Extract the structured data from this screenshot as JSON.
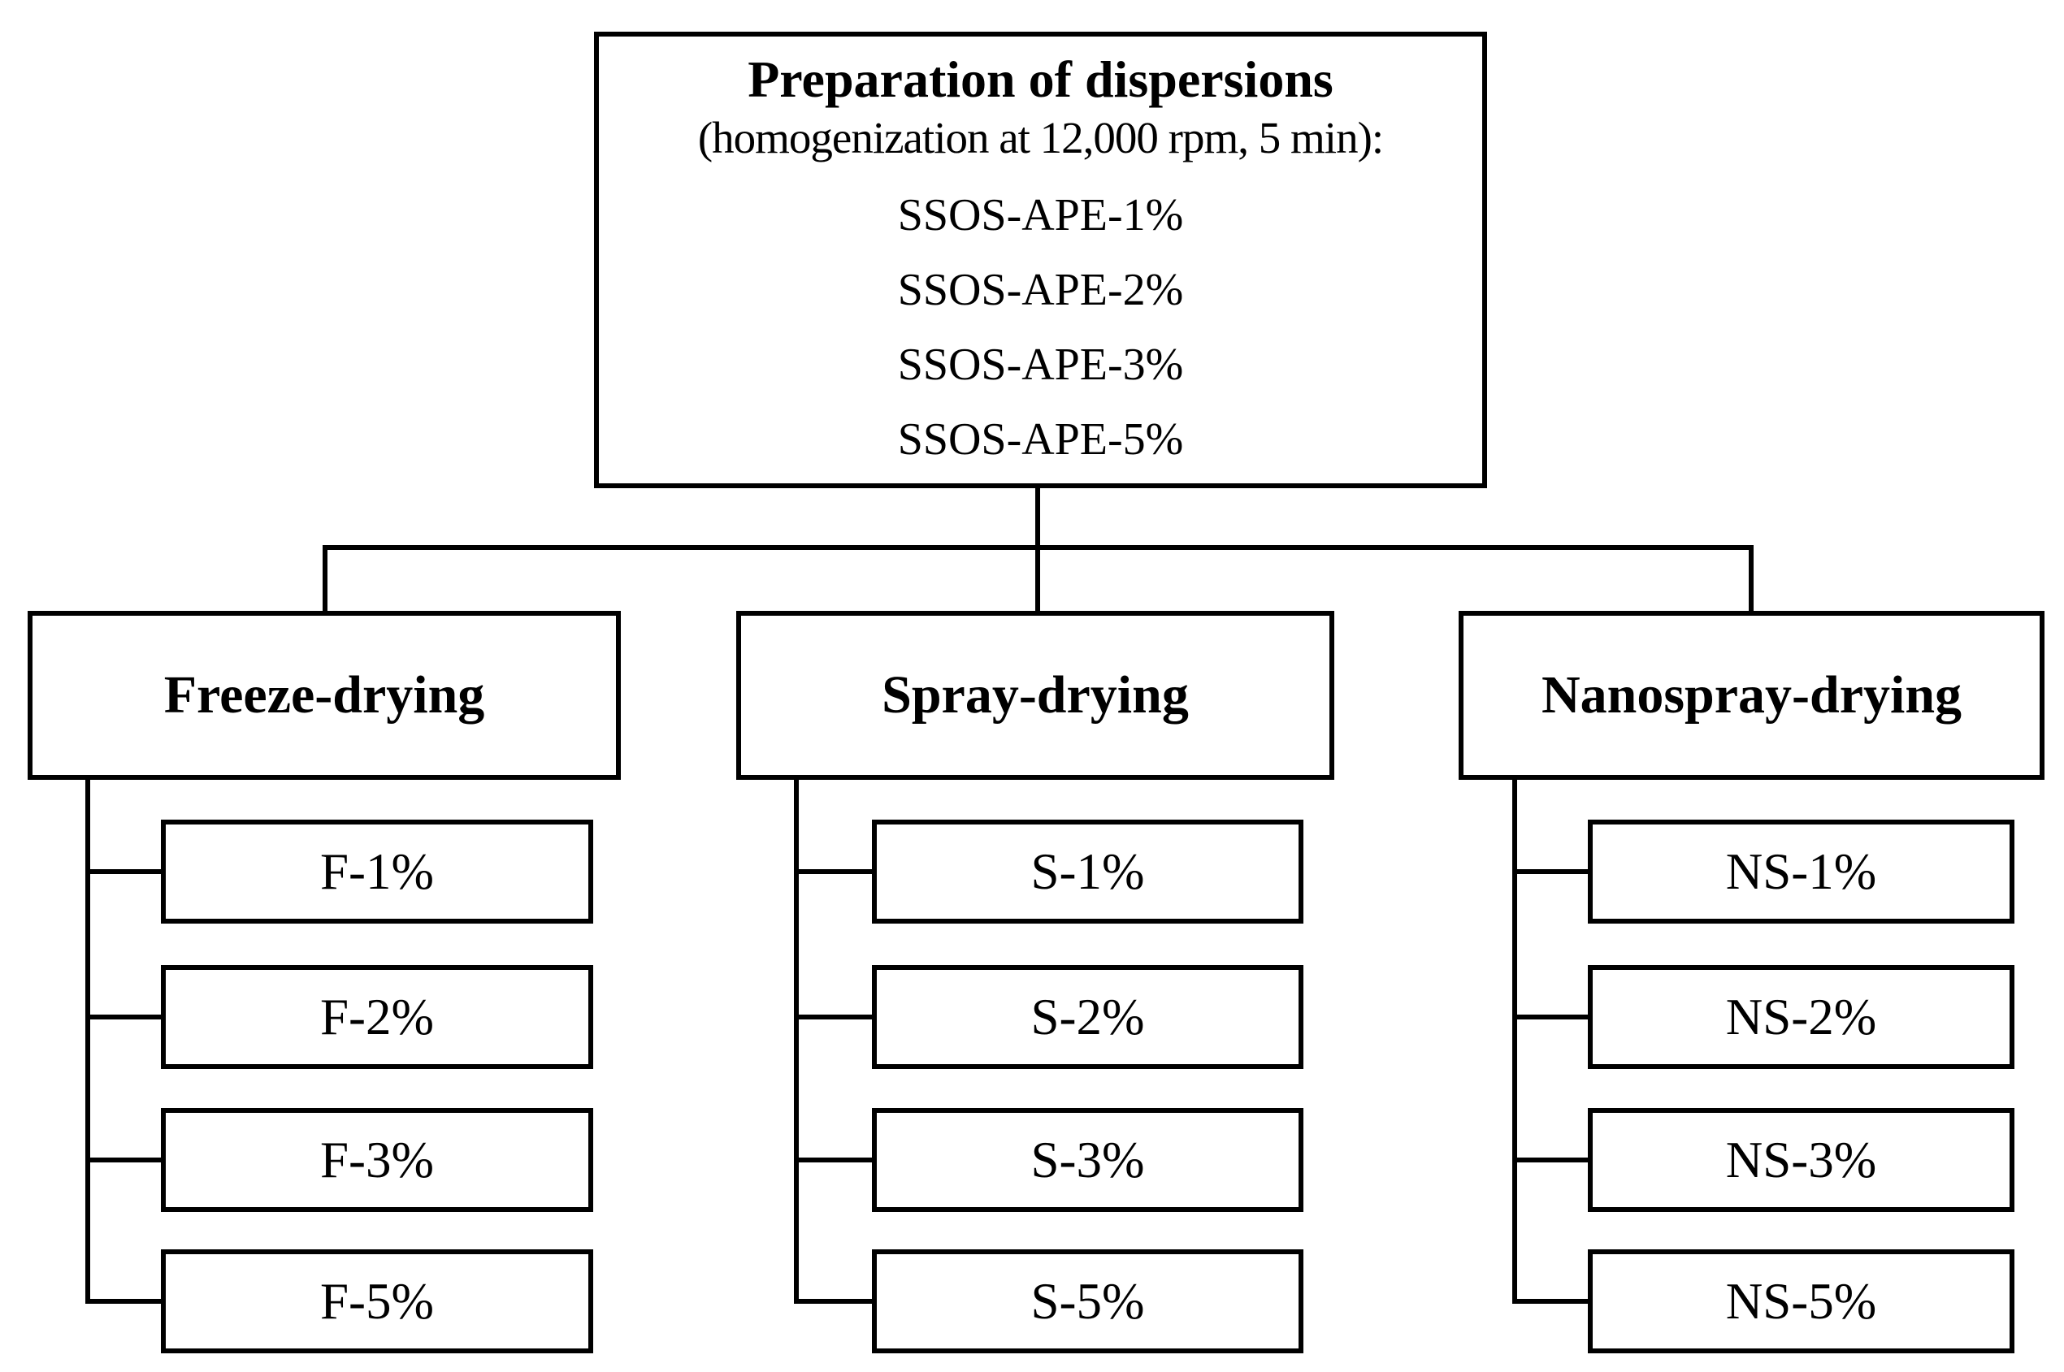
{
  "root": {
    "title": "Preparation of dispersions",
    "subtitle": "(homogenization at 12,000 rpm, 5 min):",
    "items": [
      "SSOS-APE-1%",
      "SSOS-APE-2%",
      "SSOS-APE-3%",
      "SSOS-APE-5%"
    ]
  },
  "branches": [
    {
      "label": "Freeze-drying",
      "children": [
        "F-1%",
        "F-2%",
        "F-3%",
        "F-5%"
      ]
    },
    {
      "label": "Spray-drying",
      "children": [
        "S-1%",
        "S-2%",
        "S-3%",
        "S-5%"
      ]
    },
    {
      "label": "Nanospray-drying",
      "children": [
        "NS-1%",
        "NS-2%",
        "NS-3%",
        "NS-5%"
      ]
    }
  ],
  "colors": {
    "line": "#000000",
    "background": "#ffffff",
    "text": "#000000"
  }
}
